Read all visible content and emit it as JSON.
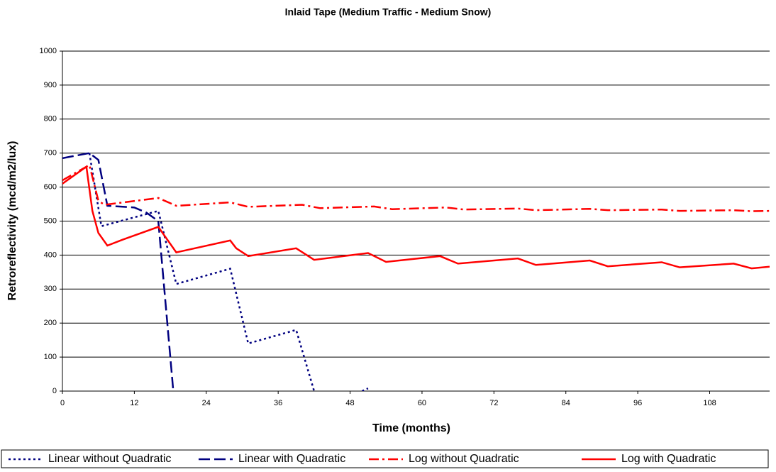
{
  "chart_data": {
    "type": "line",
    "title": "Inlaid Tape (Medium Traffic - Medium Snow)",
    "x_label": "Time (months)",
    "y_label": "Retroreflectivity (mcd/m2/lux)",
    "xlim": [
      0,
      118
    ],
    "xticks": [
      0,
      12,
      24,
      36,
      48,
      60,
      72,
      84,
      96,
      108
    ],
    "ylim": [
      0,
      1000
    ],
    "yticks": [
      0,
      100,
      200,
      300,
      400,
      500,
      600,
      700,
      800,
      900,
      1000
    ],
    "grid": true,
    "legend": "bottom",
    "series": [
      {
        "name": "Linear without Quadratic",
        "color": "#000080",
        "dash": "dotted",
        "x": [
          4.5,
          6.5,
          16,
          19,
          28,
          31,
          39,
          42,
          null,
          50,
          51
        ],
        "values": [
          700,
          485,
          530,
          315,
          360,
          140,
          180,
          0,
          null,
          0,
          8
        ]
      },
      {
        "name": "Linear with Quadratic",
        "color": "#000080",
        "dash": "dashed",
        "x": [
          0,
          4.5,
          6,
          7.5,
          12,
          14,
          16,
          18.5
        ],
        "values": [
          685,
          700,
          680,
          545,
          540,
          525,
          500,
          0
        ]
      },
      {
        "name": "Log without Quadratic",
        "color": "#ff0000",
        "dash": "dashdot",
        "x": [
          0,
          4.5,
          6,
          7,
          16,
          19,
          28,
          31,
          40,
          43,
          52,
          55,
          64,
          67,
          76,
          79,
          88,
          91,
          100,
          103,
          112,
          115,
          118
        ],
        "values": [
          620,
          665,
          560,
          548,
          568,
          545,
          555,
          542,
          548,
          538,
          543,
          535,
          540,
          534,
          537,
          532,
          536,
          532,
          534,
          530,
          532,
          529,
          530
        ]
      },
      {
        "name": "Log with Quadratic",
        "color": "#ff0000",
        "dash": "solid",
        "x": [
          0,
          4,
          5,
          6,
          7.5,
          10,
          16,
          19,
          28,
          29,
          31,
          39,
          42,
          51,
          54,
          63,
          66,
          76,
          79,
          88,
          91,
          100,
          103,
          112,
          115,
          118
        ],
        "values": [
          610,
          660,
          530,
          465,
          428,
          445,
          483,
          408,
          443,
          420,
          397,
          420,
          386,
          406,
          380,
          397,
          375,
          390,
          371,
          384,
          367,
          379,
          364,
          375,
          361,
          366
        ]
      }
    ]
  }
}
